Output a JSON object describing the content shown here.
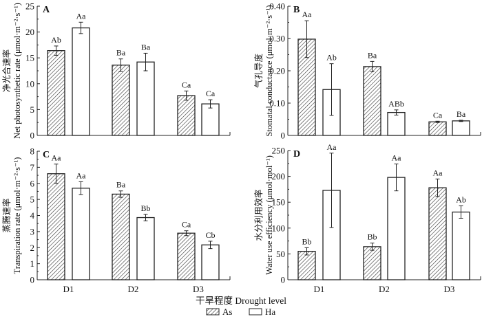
{
  "chart_data": [
    {
      "type": "bar",
      "panel": "A",
      "ylabel_cn": "净光合速率",
      "ylabel": "Net photosynthetic rate (μmol·m⁻²·s⁻¹)",
      "ylim": [
        0,
        25
      ],
      "yticks": [
        0,
        5,
        10,
        15,
        20,
        25
      ],
      "ytick_labels": [
        "0",
        "5",
        "10",
        "15",
        "20",
        "25"
      ],
      "categories": [
        "D1",
        "D2",
        "D3"
      ],
      "show_categories": false,
      "series": [
        {
          "name": "As",
          "values": [
            16.4,
            13.6,
            7.7
          ],
          "errors": [
            0.9,
            1.2,
            0.9
          ],
          "letters": [
            "Ab",
            "Ba",
            "Ca"
          ]
        },
        {
          "name": "Ha",
          "values": [
            20.8,
            14.2,
            6.1
          ],
          "errors": [
            1.1,
            1.7,
            0.8
          ],
          "letters": [
            "Aa",
            "Ba",
            "Ca"
          ]
        }
      ]
    },
    {
      "type": "bar",
      "panel": "B",
      "ylabel_cn": "气孔导度",
      "ylabel": "Stomatal conductance (μmol·m⁻²·s⁻¹)",
      "ylim": [
        0,
        0.4
      ],
      "yticks": [
        0,
        0.1,
        0.2,
        0.3,
        0.4
      ],
      "ytick_labels": [
        "0",
        "0.10",
        "0.20",
        "0.30",
        "0.40"
      ],
      "categories": [
        "D1",
        "D2",
        "D3"
      ],
      "show_categories": false,
      "series": [
        {
          "name": "As",
          "values": [
            0.298,
            0.213,
            0.042
          ],
          "errors": [
            0.057,
            0.016,
            0.002
          ],
          "letters": [
            "Aa",
            "Ba",
            "Ca"
          ]
        },
        {
          "name": "Ha",
          "values": [
            0.142,
            0.071,
            0.045
          ],
          "errors": [
            0.08,
            0.008,
            0.002
          ],
          "letters": [
            "Ab",
            "ABb",
            "Ba"
          ]
        }
      ]
    },
    {
      "type": "bar",
      "panel": "C",
      "ylabel_cn": "蒸腾速率",
      "ylabel": "Transpiration rate (μmol·m⁻²·s⁻¹)",
      "ylim": [
        0,
        8
      ],
      "yticks": [
        0,
        1,
        2,
        3,
        4,
        5,
        6,
        7,
        8
      ],
      "ytick_labels": [
        "0",
        "1",
        "2",
        "3",
        "4",
        "5",
        "6",
        "7",
        "8"
      ],
      "categories": [
        "D1",
        "D2",
        "D3"
      ],
      "show_categories": true,
      "series": [
        {
          "name": "As",
          "values": [
            6.6,
            5.33,
            2.9
          ],
          "errors": [
            0.6,
            0.2,
            0.15
          ],
          "letters": [
            "Aa",
            "Ba",
            "Ca"
          ]
        },
        {
          "name": "Ha",
          "values": [
            5.7,
            3.87,
            2.17
          ],
          "errors": [
            0.4,
            0.2,
            0.23
          ],
          "letters": [
            "Aa",
            "Bb",
            "Cb"
          ]
        }
      ]
    },
    {
      "type": "bar",
      "panel": "D",
      "ylabel_cn": "水分利用效率",
      "ylabel": "Water use efficiency (μmol·mol⁻¹)",
      "ylim": [
        0,
        250
      ],
      "yticks": [
        0,
        50,
        100,
        150,
        200,
        250
      ],
      "ytick_labels": [
        "0",
        "50",
        "100",
        "150",
        "200",
        "250"
      ],
      "categories": [
        "D1",
        "D2",
        "D3"
      ],
      "show_categories": true,
      "series": [
        {
          "name": "As",
          "values": [
            55,
            64,
            178
          ],
          "errors": [
            7,
            7,
            17
          ],
          "letters": [
            "Bb",
            "Bb",
            "Aa"
          ]
        },
        {
          "name": "Ha",
          "values": [
            173,
            198,
            131
          ],
          "errors": [
            72,
            26,
            12
          ],
          "letters": [
            "Aa",
            "Aa",
            "Ab"
          ]
        }
      ]
    }
  ],
  "xlabel": "干旱程度 Drought level",
  "legend": [
    {
      "name": "As",
      "style": "hatched"
    },
    {
      "name": "Ha",
      "style": "white"
    }
  ]
}
